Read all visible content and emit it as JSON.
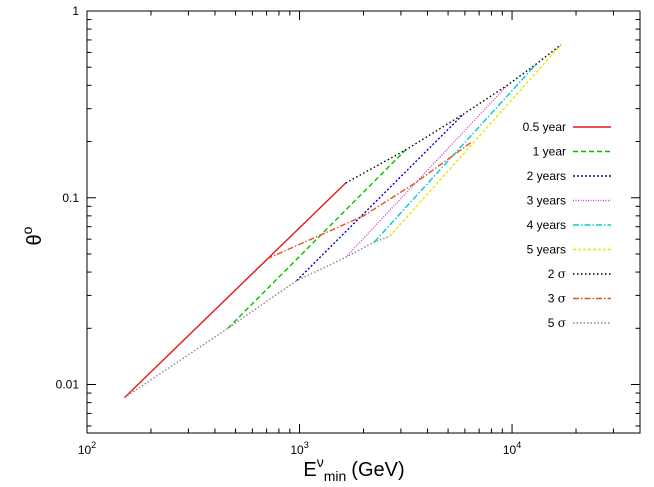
{
  "chart_data": {
    "type": "line",
    "xscale": "log",
    "yscale": "log",
    "xlim": [
      100,
      40000
    ],
    "ylim": [
      0.0055,
      1
    ],
    "grid": false,
    "legend_position": "right",
    "xlabel": {
      "base": "E",
      "sup": "ν",
      "sub": "min",
      "unit": "(GeV)"
    },
    "ylabel": {
      "base": "θ",
      "sup": "o"
    },
    "x_ticks": [
      {
        "value": 100,
        "mantissa": "10",
        "exp": "2"
      },
      {
        "value": 1000,
        "mantissa": "10",
        "exp": "3"
      },
      {
        "value": 10000,
        "mantissa": "10",
        "exp": "4"
      }
    ],
    "y_ticks": [
      {
        "value": 0.01,
        "label": "0.01"
      },
      {
        "value": 0.1,
        "label": "0.1"
      },
      {
        "value": 1,
        "label": "1"
      }
    ],
    "series": [
      {
        "name": "0.5 year",
        "name_symbol": "",
        "color": "#e41a1c",
        "dash": "",
        "x": [
          150,
          1650
        ],
        "y": [
          0.0085,
          0.12
        ]
      },
      {
        "name": "1 year",
        "name_symbol": "",
        "color": "#00c000",
        "dash": "5,3",
        "x": [
          460,
          3150
        ],
        "y": [
          0.02,
          0.18
        ]
      },
      {
        "name": "2 years",
        "name_symbol": "",
        "color": "#0000cc",
        "dash": "2,2",
        "x": [
          970,
          5900
        ],
        "y": [
          0.036,
          0.28
        ]
      },
      {
        "name": "3 years",
        "name_symbol": "",
        "color": "#d040d0",
        "dash": "1,1.5",
        "x": [
          1650,
          9500
        ],
        "y": [
          0.048,
          0.4
        ]
      },
      {
        "name": "4 years",
        "name_symbol": "",
        "color": "#00c8d8",
        "dash": "6,2,1.5,2",
        "x": [
          2250,
          13000
        ],
        "y": [
          0.058,
          0.52
        ]
      },
      {
        "name": "5 years",
        "name_symbol": "",
        "color": "#e8e800",
        "dash": "3,2",
        "x": [
          2650,
          17000
        ],
        "y": [
          0.062,
          0.66
        ]
      },
      {
        "name": "2 ",
        "name_symbol": "σ",
        "color": "#000000",
        "dash": "1.5,2.5",
        "x": [
          1650,
          3150,
          5900,
          9500,
          13000,
          17000
        ],
        "y": [
          0.12,
          0.18,
          0.28,
          0.4,
          0.52,
          0.66
        ]
      },
      {
        "name": "3 ",
        "name_symbol": "σ",
        "color": "#e8501a",
        "dash": "6,2,1.5,2",
        "x": [
          700,
          2000,
          3500,
          6500
        ],
        "y": [
          0.047,
          0.08,
          0.12,
          0.2
        ]
      },
      {
        "name": "5 ",
        "name_symbol": "σ",
        "color": "#888888",
        "dash": "1.5,2",
        "x": [
          150,
          460,
          970,
          1650,
          2250,
          2650
        ],
        "y": [
          0.0085,
          0.02,
          0.036,
          0.048,
          0.058,
          0.062
        ]
      }
    ]
  }
}
